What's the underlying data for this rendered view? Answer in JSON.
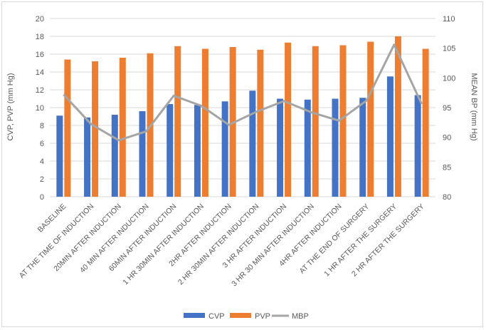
{
  "chart_data": {
    "type": "bar",
    "categories": [
      "BASELINE",
      "AT THE TIME OF INDUCTION",
      "20MIN AFTER INDUCTION",
      "40 MIN AFTER INDUCTION",
      "60MIN AFTER INDUCTION",
      "1 HR 30MIN AFTER INDUCTION",
      "2HR AFTER INDUCTION",
      "2 HR 30MIN  AFTER INDUCTION",
      "3 HR AFTER INDUCTION",
      "3 HR 30 MIN  AFTER INDUCTION",
      "4HR AFTER INDUCTION",
      "AT THE END OF SURGERY",
      "1 HR AFTER THE SURGERY",
      "2 HR AFTER THE SURGERY"
    ],
    "series": [
      {
        "name": "CVP",
        "type": "bar",
        "axis": "left",
        "color": "#4472c4",
        "values": [
          9.1,
          8.9,
          9.2,
          9.6,
          10.4,
          10.3,
          10.7,
          11.9,
          11.0,
          10.9,
          11.0,
          11.1,
          13.5,
          11.4
        ]
      },
      {
        "name": "PVP",
        "type": "bar",
        "axis": "left",
        "color": "#ed7d31",
        "values": [
          15.4,
          15.2,
          15.6,
          16.1,
          16.9,
          16.6,
          16.8,
          16.5,
          17.3,
          16.9,
          17.0,
          17.4,
          18.0,
          16.6
        ]
      },
      {
        "name": "MBP",
        "type": "line",
        "axis": "right",
        "color": "#a5a5a5",
        "values": [
          97.2,
          92.2,
          89.5,
          91.0,
          97.0,
          95.3,
          92.1,
          94.3,
          96.1,
          94.2,
          92.8,
          96.2,
          105.6,
          95.6
        ]
      }
    ],
    "ylabel": "CVP, PVP (mm Hg)",
    "y2label": "MEAN BP (mm Hg)",
    "ylim": [
      0,
      20
    ],
    "y2lim": [
      80,
      110
    ],
    "yticks": [
      "0",
      "2",
      "4",
      "6",
      "8",
      "10",
      "12",
      "14",
      "16",
      "18",
      "20"
    ],
    "y2ticks": [
      "80",
      "85",
      "90",
      "95",
      "100",
      "105",
      "110"
    ],
    "grid": true,
    "legend_position": "bottom"
  }
}
